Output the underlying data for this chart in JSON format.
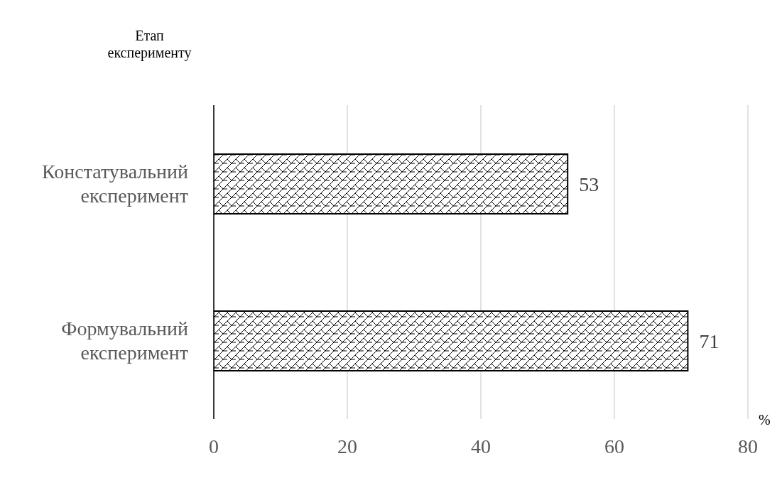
{
  "chart_data": {
    "type": "bar",
    "orientation": "horizontal",
    "ylabel": "Етап експерименту",
    "xlabel": "%",
    "categories": [
      "Констатувальний експеримент",
      "Формувальний експеримент"
    ],
    "values": [
      53,
      71
    ],
    "color": "#000000",
    "xlim": [
      0,
      80
    ],
    "xticks": [
      0,
      20,
      40,
      60,
      80
    ],
    "grid": "x",
    "data_labels": true
  }
}
